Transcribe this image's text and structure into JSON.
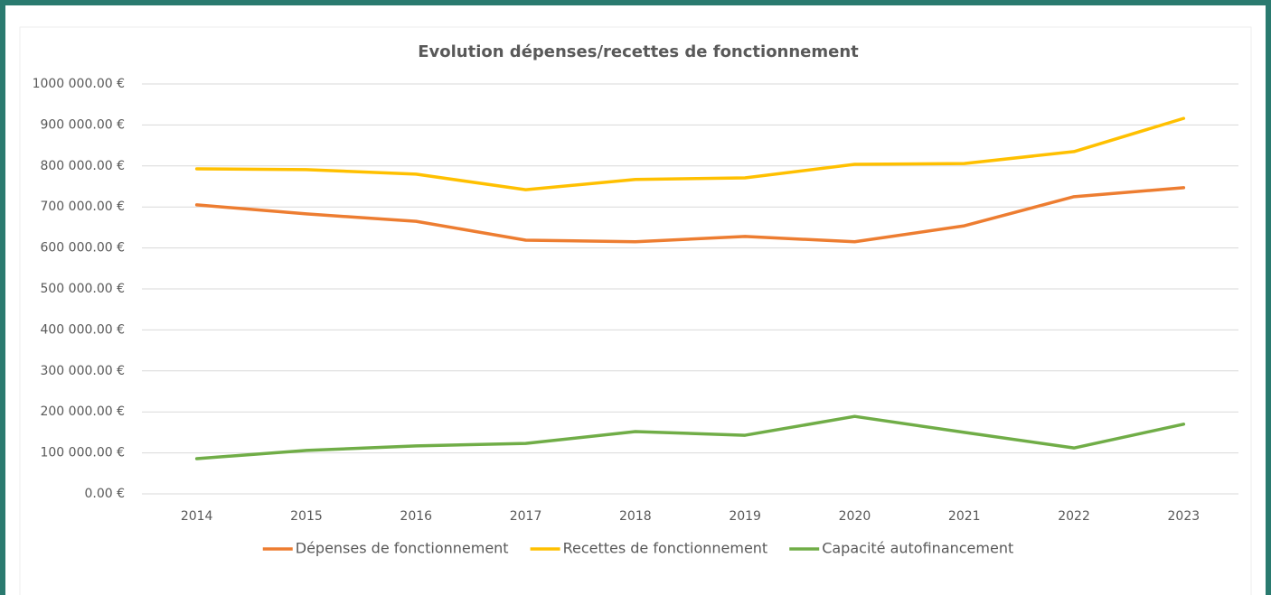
{
  "chart_data": {
    "type": "line",
    "title": "Evolution dépenses/recettes de fonctionnement",
    "categories": [
      "2014",
      "2015",
      "2016",
      "2017",
      "2018",
      "2019",
      "2020",
      "2021",
      "2022",
      "2023"
    ],
    "series": [
      {
        "name": "Dépenses de fonctionnement",
        "color": "#ED7D31",
        "values": [
          705000,
          683000,
          665000,
          619000,
          615000,
          628000,
          615000,
          654000,
          725000,
          747000
        ]
      },
      {
        "name": "Recettes de fonctionnement",
        "color": "#FFC000",
        "values": [
          793000,
          791000,
          780000,
          742000,
          767000,
          771000,
          804000,
          806000,
          835000,
          916000
        ]
      },
      {
        "name": "Capacité autofinancement",
        "color": "#70AD47",
        "values": [
          86000,
          106000,
          117000,
          123000,
          152000,
          143000,
          189000,
          150000,
          112000,
          170000
        ]
      }
    ],
    "ylim": [
      0,
      1000000
    ],
    "yticks": [
      {
        "value": 0,
        "label": "0.00 €"
      },
      {
        "value": 100000,
        "label": "100 000.00 €"
      },
      {
        "value": 200000,
        "label": "200 000.00 €"
      },
      {
        "value": 300000,
        "label": "300 000.00 €"
      },
      {
        "value": 400000,
        "label": "400 000.00 €"
      },
      {
        "value": 500000,
        "label": "500 000.00 €"
      },
      {
        "value": 600000,
        "label": "600 000.00 €"
      },
      {
        "value": 700000,
        "label": "700 000.00 €"
      },
      {
        "value": 800000,
        "label": "800 000.00 €"
      },
      {
        "value": 900000,
        "label": "900 000.00 €"
      },
      {
        "value": 1000000,
        "label": "1000 000.00 €"
      }
    ],
    "grid": true,
    "legend": "bottom"
  }
}
